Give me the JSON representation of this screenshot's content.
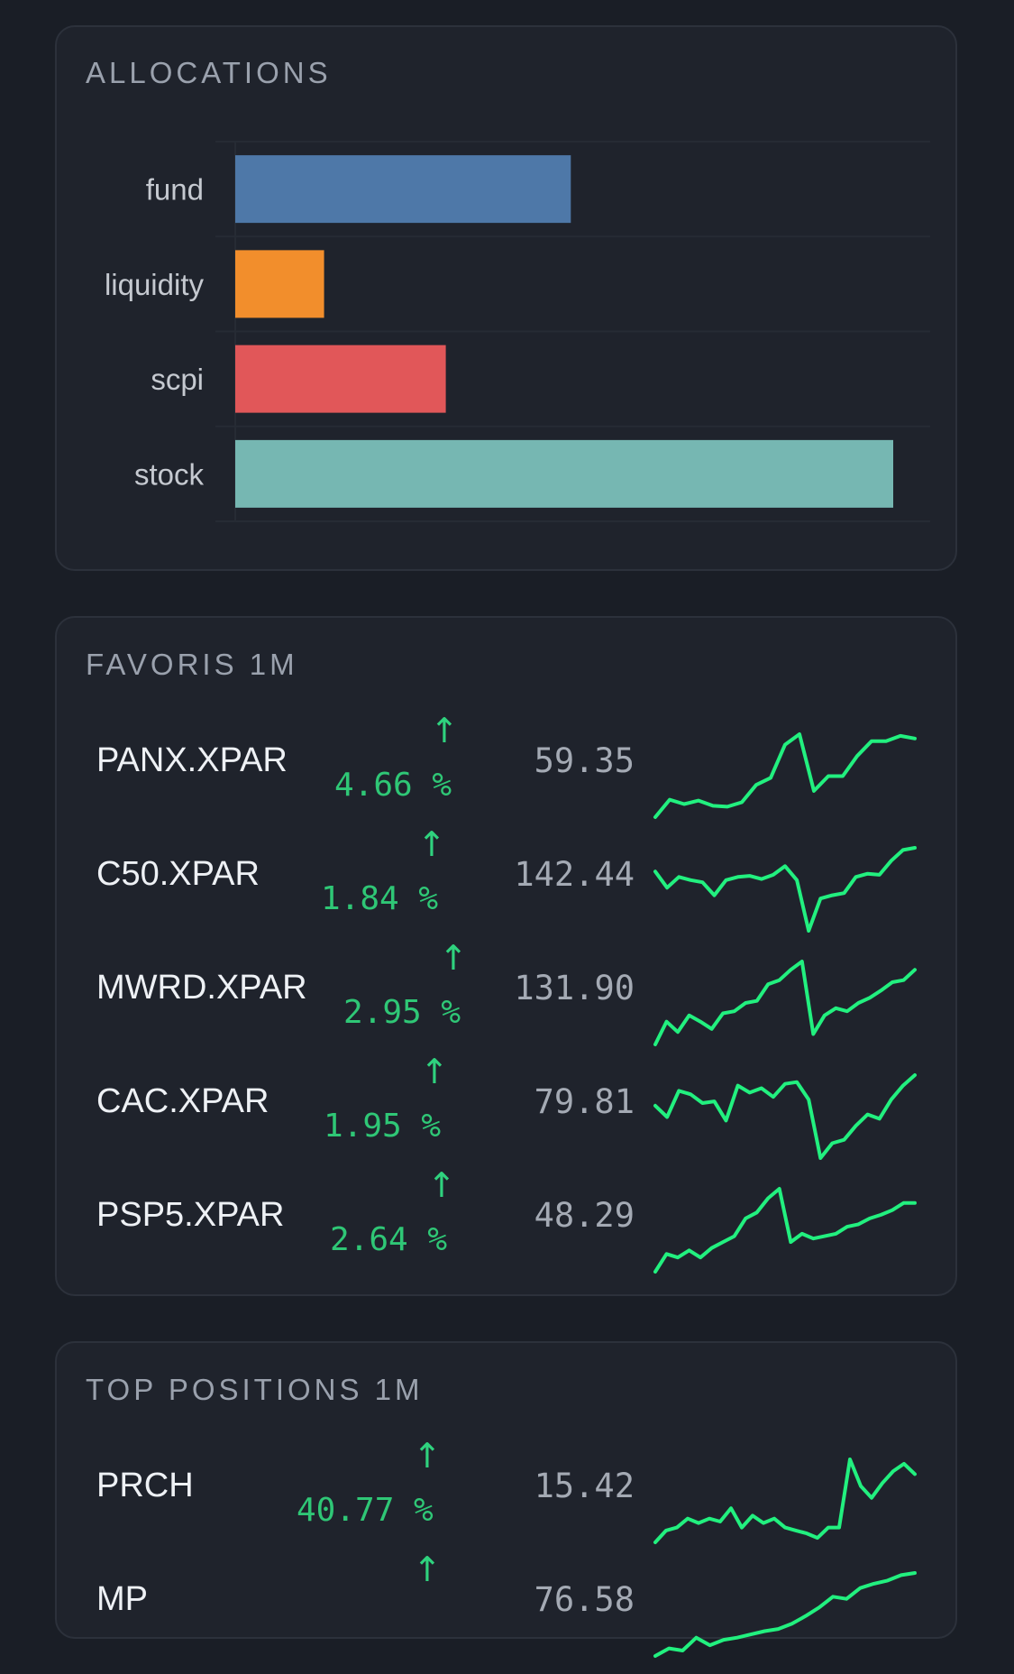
{
  "allocations": {
    "title": "ALLOCATIONS",
    "chart_data": {
      "type": "bar",
      "orientation": "horizontal",
      "categories": [
        "fund",
        "liquidity",
        "scpi",
        "stock"
      ],
      "values": [
        51,
        13.5,
        32,
        100
      ],
      "colors": [
        "#4e78a8",
        "#f28e2c",
        "#e15759",
        "#76b7b2"
      ],
      "grid": true
    }
  },
  "favoris": {
    "title": "FAVORIS 1M",
    "rows": [
      {
        "ticker": "PANX.XPAR",
        "arrow": "↑",
        "change": "4.66 %",
        "price": "59.35",
        "spark": [
          5,
          25,
          20,
          24,
          18,
          17,
          22,
          42,
          50,
          88,
          100,
          35,
          52,
          52,
          75,
          92,
          92,
          98,
          95
        ]
      },
      {
        "ticker": "C50.XPAR",
        "arrow": "↑",
        "change": "1.84 %",
        "price": "142.44",
        "spark": [
          60,
          45,
          55,
          52,
          50,
          38,
          52,
          55,
          56,
          53,
          57,
          65,
          52,
          5,
          35,
          38,
          40,
          55,
          58,
          57,
          70,
          80,
          82
        ]
      },
      {
        "ticker": "MWRD.XPAR",
        "arrow": "↑",
        "change": "2.95 %",
        "price": "131.90",
        "spark": [
          10,
          32,
          22,
          38,
          32,
          25,
          40,
          42,
          50,
          52,
          68,
          72,
          82,
          90,
          20,
          38,
          45,
          42,
          50,
          55,
          62,
          70,
          72,
          82
        ]
      },
      {
        "ticker": "CAC.XPAR",
        "arrow": "↑",
        "change": "1.95 %",
        "price": "79.81",
        "spark": [
          65,
          52,
          82,
          78,
          68,
          70,
          48,
          88,
          80,
          85,
          75,
          90,
          92,
          72,
          5,
          22,
          26,
          42,
          55,
          50,
          72,
          88,
          100
        ]
      },
      {
        "ticker": "PSP5.XPAR",
        "arrow": "↑",
        "change": "2.64 %",
        "price": "48.29",
        "spark": [
          10,
          25,
          22,
          28,
          22,
          30,
          35,
          40,
          55,
          60,
          72,
          80,
          35,
          42,
          38,
          40,
          42,
          48,
          50,
          55,
          58,
          62,
          68,
          68
        ]
      }
    ]
  },
  "top_positions": {
    "title": "TOP POSITIONS 1M",
    "rows": [
      {
        "ticker": "PRCH",
        "arrow": "↑",
        "change": "40.77 %",
        "price": "15.42",
        "spark": [
          2,
          10,
          12,
          18,
          15,
          18,
          16,
          25,
          12,
          20,
          15,
          18,
          12,
          10,
          8,
          5,
          12,
          12,
          58,
          40,
          32,
          42,
          50,
          55,
          48
        ]
      },
      {
        "ticker": "MP",
        "arrow": "↑",
        "change": "",
        "price": "76.58",
        "spark": [
          5,
          12,
          10,
          22,
          15,
          20,
          22,
          25,
          28,
          30,
          35,
          42,
          50,
          60,
          58,
          68,
          72,
          75,
          80,
          82
        ]
      }
    ]
  }
}
